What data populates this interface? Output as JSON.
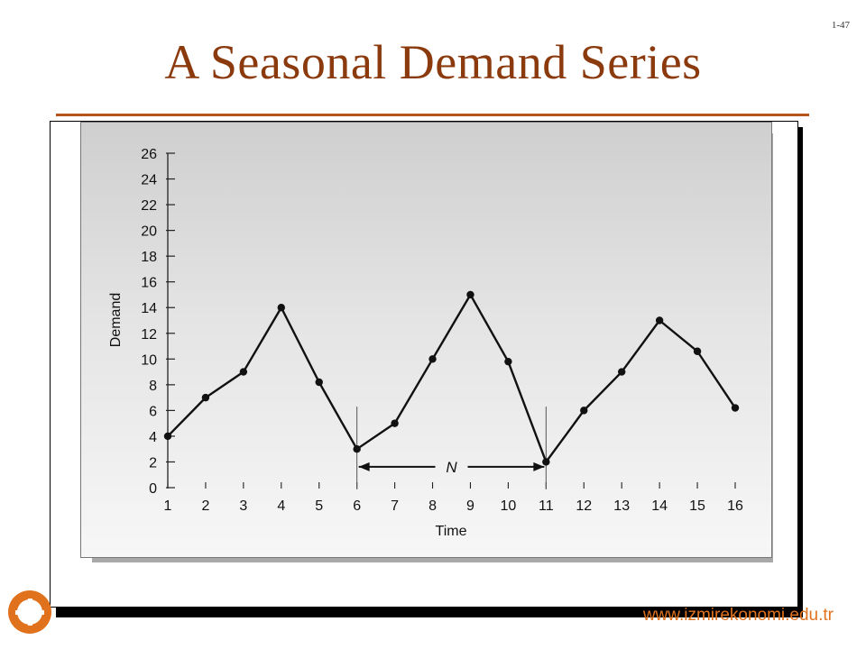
{
  "slide": {
    "number": "1-47",
    "title": "A Seasonal Demand Series",
    "footer_url": "www.izmirekonomi.edu.tr"
  },
  "colors": {
    "title": "#8b3a0e",
    "rule": "#b5531a",
    "footer": "#e0721e",
    "series": "#111111"
  },
  "chart_data": {
    "type": "line",
    "title": "",
    "xlabel": "Time",
    "ylabel": "Demand",
    "x": [
      1,
      2,
      3,
      4,
      5,
      6,
      7,
      8,
      9,
      10,
      11,
      12,
      13,
      14,
      15,
      16
    ],
    "series": [
      {
        "values": [
          4,
          7,
          9,
          14,
          8.2,
          3,
          5,
          10,
          15,
          9.8,
          2,
          6,
          9,
          13,
          10.6,
          6.2
        ]
      }
    ],
    "yticks": [
      0,
      2,
      4,
      6,
      8,
      10,
      12,
      14,
      16,
      18,
      20,
      22,
      24,
      26
    ],
    "xlim": [
      1,
      16
    ],
    "ylim": [
      0,
      26
    ],
    "grid": false,
    "annotations": [
      {
        "text": "N",
        "from_x": 6,
        "to_x": 11,
        "y": 1.2
      }
    ]
  }
}
